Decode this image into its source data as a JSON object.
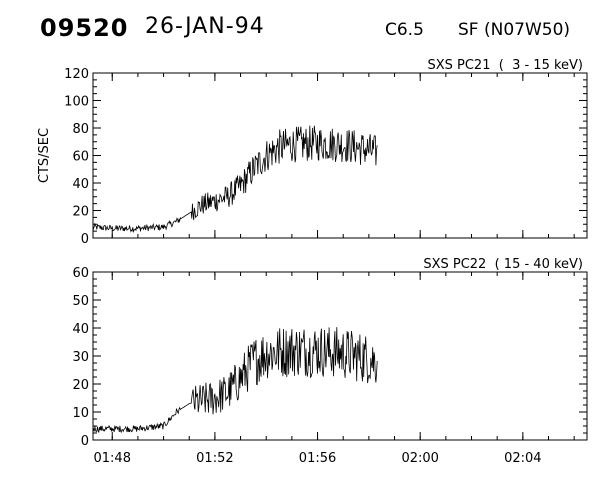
{
  "header": {
    "event_id": "09520",
    "date": "26-JAN-94",
    "flare_class": "C6.5",
    "location": "SF (N07W50)"
  },
  "chart_data": [
    {
      "type": "line",
      "title": "SXS PC21  (  3 - 15 keV)",
      "ylabel": "CTS/SEC",
      "xlabel": "",
      "x_unit": "UT time",
      "xlim": [
        "01:47:15",
        "02:06:30"
      ],
      "x_ticks": [
        "01:48",
        "01:52",
        "01:56",
        "02:00",
        "02:04"
      ],
      "ylim": [
        0,
        120
      ],
      "y_ticks": [
        0,
        20,
        40,
        60,
        80,
        100,
        120
      ],
      "data_end": "01:58:20",
      "points": [
        {
          "t": "01:47:15",
          "y": 8
        },
        {
          "t": "01:48:00",
          "y": 7
        },
        {
          "t": "01:49:00",
          "y": 7
        },
        {
          "t": "01:50:00",
          "y": 8
        },
        {
          "t": "01:50:30",
          "y": 12
        },
        {
          "t": "01:51:00",
          "y": 18
        },
        {
          "t": "01:51:30",
          "y": 24
        },
        {
          "t": "01:52:00",
          "y": 27
        },
        {
          "t": "01:52:30",
          "y": 30
        },
        {
          "t": "01:53:00",
          "y": 38
        },
        {
          "t": "01:53:30",
          "y": 50
        },
        {
          "t": "01:54:00",
          "y": 60
        },
        {
          "t": "01:54:30",
          "y": 66
        },
        {
          "t": "01:55:00",
          "y": 68
        },
        {
          "t": "01:56:00",
          "y": 69
        },
        {
          "t": "01:57:00",
          "y": 68
        },
        {
          "t": "01:58:00",
          "y": 64
        },
        {
          "t": "01:58:20",
          "y": 62
        }
      ]
    },
    {
      "type": "line",
      "title": "SXS PC22  ( 15 - 40 keV)",
      "ylabel": "",
      "xlabel": "",
      "x_unit": "UT time",
      "xlim": [
        "01:47:15",
        "02:06:30"
      ],
      "x_ticks": [
        "01:48",
        "01:52",
        "01:56",
        "02:00",
        "02:04"
      ],
      "ylim": [
        0,
        60
      ],
      "y_ticks": [
        0,
        10,
        20,
        30,
        40,
        50,
        60
      ],
      "data_end": "01:58:20",
      "points": [
        {
          "t": "01:47:15",
          "y": 4
        },
        {
          "t": "01:48:00",
          "y": 4
        },
        {
          "t": "01:49:00",
          "y": 4
        },
        {
          "t": "01:50:00",
          "y": 5
        },
        {
          "t": "01:50:30",
          "y": 10
        },
        {
          "t": "01:51:00",
          "y": 13
        },
        {
          "t": "01:52:00",
          "y": 15
        },
        {
          "t": "01:52:30",
          "y": 17
        },
        {
          "t": "01:53:00",
          "y": 22
        },
        {
          "t": "01:53:30",
          "y": 28
        },
        {
          "t": "01:54:00",
          "y": 31
        },
        {
          "t": "01:55:00",
          "y": 32
        },
        {
          "t": "01:56:00",
          "y": 32
        },
        {
          "t": "01:57:00",
          "y": 31
        },
        {
          "t": "01:58:00",
          "y": 29
        },
        {
          "t": "01:58:20",
          "y": 28
        }
      ]
    }
  ]
}
